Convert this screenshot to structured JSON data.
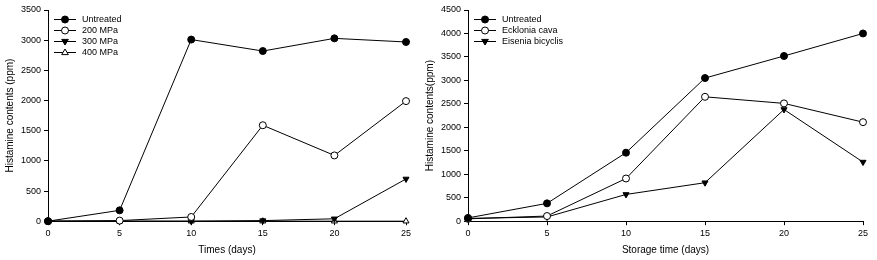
{
  "chart_data": [
    {
      "type": "line",
      "x_label": "Times (days)",
      "y_label": "Histamine contents (ppm)",
      "xlim": [
        0,
        25
      ],
      "xticks": [
        0,
        5,
        10,
        15,
        20,
        25
      ],
      "ylim": [
        0,
        3500
      ],
      "yticks": [
        0,
        500,
        1000,
        1500,
        2000,
        2500,
        3000,
        3500
      ],
      "grid": false,
      "legend": "upper left",
      "x": [
        0,
        5,
        10,
        15,
        20,
        25
      ],
      "series": [
        {
          "name": "Untreated",
          "color": "#000000",
          "marker": "circle",
          "values": [
            0,
            180,
            3010,
            2820,
            3030,
            2970
          ]
        },
        {
          "name": "200 MPa",
          "color": "#000000",
          "marker": "circle_open",
          "values": [
            0,
            10,
            70,
            1590,
            1090,
            1990
          ]
        },
        {
          "name": "300 MPa",
          "color": "#000000",
          "marker": "triangle_down",
          "values": [
            0,
            0,
            0,
            10,
            40,
            700
          ]
        },
        {
          "name": "400 MPa",
          "color": "#000000",
          "marker": "triangle_open",
          "values": [
            0,
            0,
            0,
            0,
            0,
            0
          ]
        }
      ]
    },
    {
      "type": "line",
      "x_label": "Storage time (days)",
      "y_label": "Histamine contents(ppm)",
      "xlim": [
        0,
        25
      ],
      "xticks": [
        0,
        5,
        10,
        15,
        20,
        25
      ],
      "ylim": [
        0,
        4500
      ],
      "yticks": [
        0,
        500,
        1000,
        1500,
        2000,
        2500,
        3000,
        3500,
        4000,
        4500
      ],
      "grid": false,
      "legend": "upper left",
      "x": [
        0,
        5,
        10,
        15,
        20,
        25
      ],
      "series": [
        {
          "name": "Untreated",
          "color": "#000000",
          "marker": "circle",
          "values": [
            70,
            380,
            1460,
            3050,
            3520,
            4000
          ]
        },
        {
          "name": "Ecklonia cava",
          "color": "#000000",
          "marker": "circle_open",
          "values": [
            50,
            110,
            910,
            2650,
            2510,
            2110
          ]
        },
        {
          "name": "Eisenia bicyclis",
          "color": "#000000",
          "marker": "triangle_down",
          "values": [
            60,
            90,
            570,
            820,
            2380,
            1260
          ]
        }
      ]
    }
  ]
}
